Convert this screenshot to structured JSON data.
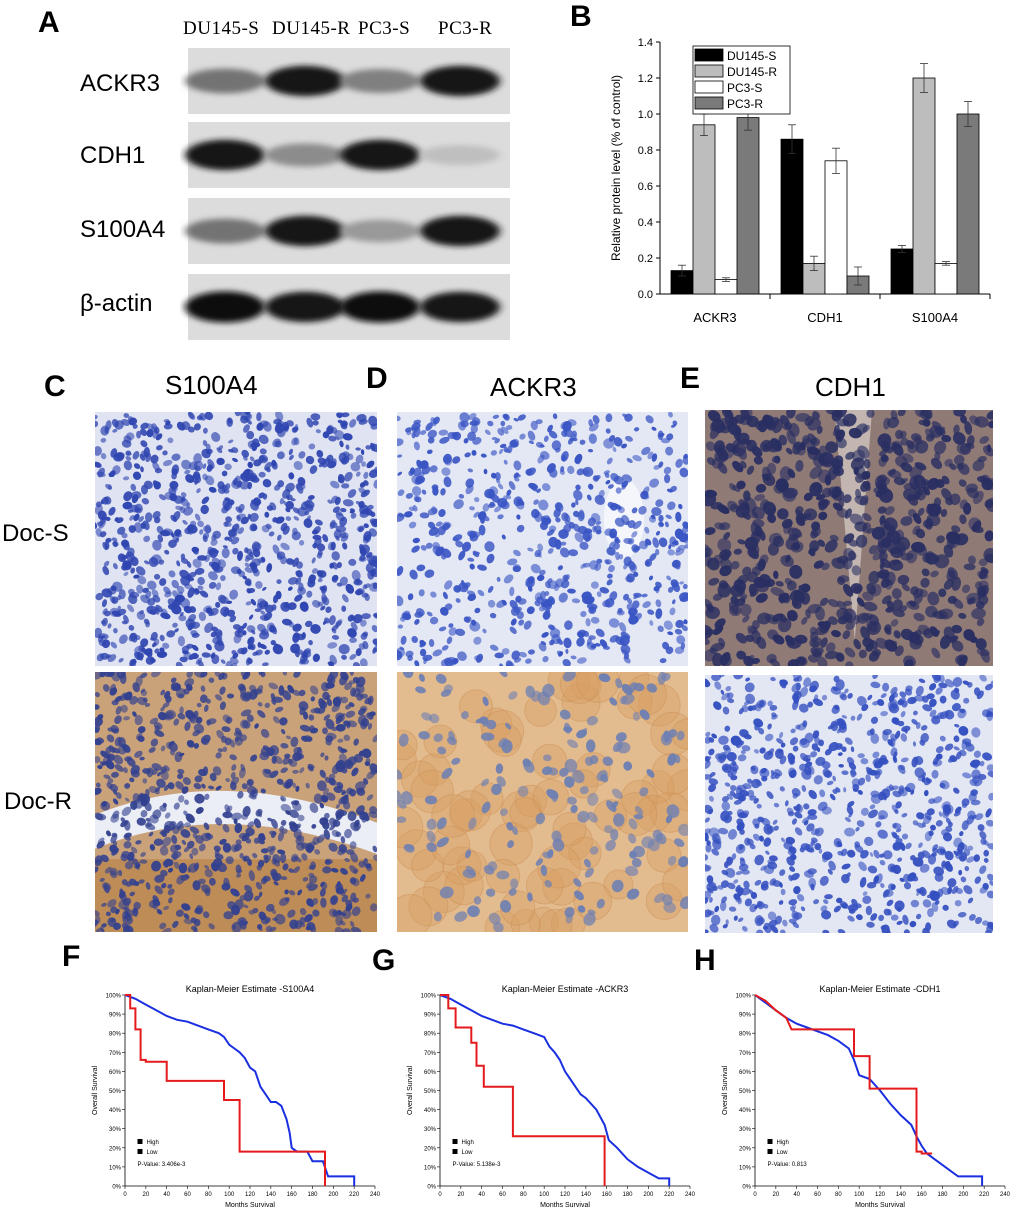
{
  "panels": {
    "A": "A",
    "B": "B",
    "C": "C",
    "D": "D",
    "E": "E",
    "F": "F",
    "G": "G",
    "H": "H"
  },
  "blot": {
    "lanes": [
      "DU145-S",
      "DU145-R",
      "PC3-S",
      "PC3-R"
    ],
    "rows": [
      {
        "label": "ACKR3",
        "intensity": [
          0.55,
          0.9,
          0.5,
          0.9
        ]
      },
      {
        "label": "CDH1",
        "intensity": [
          0.9,
          0.45,
          0.9,
          0.25
        ]
      },
      {
        "label": "S100A4",
        "intensity": [
          0.55,
          0.9,
          0.4,
          0.9
        ]
      },
      {
        "label": "β-actin",
        "intensity": [
          0.95,
          0.9,
          0.95,
          0.9
        ]
      }
    ]
  },
  "chart_data": [
    {
      "type": "bar",
      "ylabel": "Relative protein level (% of control)",
      "categories": [
        "ACKR3",
        "CDH1",
        "S100A4"
      ],
      "ylim": [
        0,
        1.4
      ],
      "yticks": [
        "0.0",
        "0.2",
        "0.4",
        "0.6",
        "0.8",
        "1.0",
        "1.2",
        "1.4"
      ],
      "legend_position": "top-left",
      "series": [
        {
          "name": "DU145-S",
          "color": "#000000",
          "values": [
            0.13,
            0.86,
            0.25
          ],
          "errors": [
            0.03,
            0.08,
            0.02
          ]
        },
        {
          "name": "DU145-R",
          "color": "#bdbdbd",
          "values": [
            0.94,
            0.17,
            1.2
          ],
          "errors": [
            0.06,
            0.04,
            0.08
          ]
        },
        {
          "name": "PC3-S",
          "color": "#ffffff",
          "values": [
            0.08,
            0.74,
            0.17
          ],
          "errors": [
            0.01,
            0.07,
            0.01
          ]
        },
        {
          "name": "PC3-R",
          "color": "#7a7a7a",
          "values": [
            0.98,
            0.1,
            1.0
          ],
          "errors": [
            0.07,
            0.05,
            0.07
          ]
        }
      ]
    },
    {
      "type": "line",
      "title": "Kaplan-Meier Estimate -S100A4",
      "xlabel": "Months Survival",
      "ylabel": "Overall Survival",
      "xlim": [
        0,
        240
      ],
      "ylim": [
        0,
        100
      ],
      "legend": [
        "High",
        "Low"
      ],
      "pvalue": "P-Value: 3.406e-3",
      "series": [
        {
          "name": "High",
          "color": "#e41a1c",
          "points": [
            [
              0,
              100
            ],
            [
              5,
              100
            ],
            [
              5,
              93
            ],
            [
              10,
              93
            ],
            [
              10,
              82
            ],
            [
              15,
              82
            ],
            [
              15,
              66
            ],
            [
              20,
              66
            ],
            [
              20,
              65
            ],
            [
              40,
              65
            ],
            [
              40,
              55
            ],
            [
              95,
              55
            ],
            [
              95,
              45
            ],
            [
              110,
              45
            ],
            [
              110,
              18
            ],
            [
              192,
              18
            ],
            [
              192,
              0
            ]
          ]
        },
        {
          "name": "Low",
          "color": "#1a2fe0",
          "points": [
            [
              0,
              100
            ],
            [
              10,
              98
            ],
            [
              20,
              95
            ],
            [
              30,
              92
            ],
            [
              40,
              89
            ],
            [
              50,
              87
            ],
            [
              60,
              86
            ],
            [
              70,
              84
            ],
            [
              80,
              82
            ],
            [
              90,
              80
            ],
            [
              95,
              78
            ],
            [
              100,
              74
            ],
            [
              105,
              72
            ],
            [
              110,
              70
            ],
            [
              115,
              67
            ],
            [
              120,
              62
            ],
            [
              125,
              60
            ],
            [
              130,
              52
            ],
            [
              135,
              48
            ],
            [
              140,
              44
            ],
            [
              145,
              44
            ],
            [
              150,
              42
            ],
            [
              155,
              35
            ],
            [
              158,
              28
            ],
            [
              160,
              20
            ],
            [
              165,
              18
            ],
            [
              175,
              18
            ],
            [
              180,
              13
            ],
            [
              190,
              13
            ],
            [
              195,
              5
            ],
            [
              220,
              5
            ],
            [
              220,
              0
            ]
          ]
        }
      ],
      "xticks": [
        0,
        20,
        40,
        60,
        80,
        100,
        120,
        140,
        160,
        180,
        200,
        220,
        240
      ],
      "yticks": [
        0,
        10,
        20,
        30,
        40,
        50,
        60,
        70,
        80,
        90,
        100
      ]
    },
    {
      "type": "line",
      "title": "Kaplan-Meier Estimate -ACKR3",
      "xlabel": "Months Survival",
      "ylabel": "Overall Survival",
      "xlim": [
        0,
        240
      ],
      "ylim": [
        0,
        100
      ],
      "legend": [
        "High",
        "Low"
      ],
      "pvalue": "P-Value: 5.138e-3",
      "series": [
        {
          "name": "High",
          "color": "#e41a1c",
          "points": [
            [
              0,
              100
            ],
            [
              8,
              100
            ],
            [
              8,
              93
            ],
            [
              15,
              93
            ],
            [
              15,
              83
            ],
            [
              30,
              83
            ],
            [
              30,
              75
            ],
            [
              35,
              75
            ],
            [
              35,
              63
            ],
            [
              42,
              63
            ],
            [
              42,
              52
            ],
            [
              70,
              52
            ],
            [
              70,
              26
            ],
            [
              158,
              26
            ],
            [
              158,
              0
            ]
          ]
        },
        {
          "name": "Low",
          "color": "#1a2fe0",
          "points": [
            [
              0,
              100
            ],
            [
              10,
              98
            ],
            [
              20,
              95
            ],
            [
              30,
              92
            ],
            [
              40,
              89
            ],
            [
              50,
              87
            ],
            [
              60,
              85
            ],
            [
              70,
              84
            ],
            [
              80,
              82
            ],
            [
              90,
              80
            ],
            [
              100,
              78
            ],
            [
              105,
              73
            ],
            [
              110,
              70
            ],
            [
              115,
              66
            ],
            [
              120,
              60
            ],
            [
              125,
              56
            ],
            [
              130,
              52
            ],
            [
              135,
              48
            ],
            [
              140,
              46
            ],
            [
              150,
              40
            ],
            [
              158,
              32
            ],
            [
              162,
              24
            ],
            [
              170,
              20
            ],
            [
              180,
              14
            ],
            [
              190,
              10
            ],
            [
              200,
              7
            ],
            [
              210,
              4
            ],
            [
              220,
              4
            ],
            [
              220,
              0
            ]
          ]
        }
      ],
      "xticks": [
        0,
        20,
        40,
        60,
        80,
        100,
        120,
        140,
        160,
        180,
        200,
        220,
        240
      ],
      "yticks": [
        0,
        10,
        20,
        30,
        40,
        50,
        60,
        70,
        80,
        90,
        100
      ]
    },
    {
      "type": "line",
      "title": "Kaplan-Meier Estimate -CDH1",
      "xlabel": "Months Survival",
      "ylabel": "Overall Survival",
      "xlim": [
        0,
        240
      ],
      "ylim": [
        0,
        100
      ],
      "legend": [
        "High",
        "Low"
      ],
      "pvalue": "P-Value: 0.813",
      "series": [
        {
          "name": "High",
          "color": "#e41a1c",
          "points": [
            [
              0,
              100
            ],
            [
              10,
              97
            ],
            [
              20,
              92
            ],
            [
              30,
              88
            ],
            [
              35,
              82
            ],
            [
              95,
              82
            ],
            [
              95,
              68
            ],
            [
              110,
              68
            ],
            [
              110,
              51
            ],
            [
              155,
              51
            ],
            [
              155,
              18
            ],
            [
              160,
              18
            ],
            [
              160,
              17
            ],
            [
              170,
              17
            ]
          ]
        },
        {
          "name": "Low",
          "color": "#1a2fe0",
          "points": [
            [
              0,
              100
            ],
            [
              10,
              96
            ],
            [
              20,
              92
            ],
            [
              30,
              88
            ],
            [
              40,
              85
            ],
            [
              50,
              83
            ],
            [
              60,
              81
            ],
            [
              70,
              79
            ],
            [
              80,
              76
            ],
            [
              90,
              72
            ],
            [
              95,
              66
            ],
            [
              100,
              58
            ],
            [
              110,
              56
            ],
            [
              120,
              50
            ],
            [
              130,
              43
            ],
            [
              140,
              37
            ],
            [
              150,
              32
            ],
            [
              155,
              26
            ],
            [
              160,
              21
            ],
            [
              165,
              17
            ],
            [
              175,
              13
            ],
            [
              185,
              9
            ],
            [
              195,
              5
            ],
            [
              218,
              5
            ],
            [
              218,
              0
            ]
          ]
        }
      ],
      "xticks": [
        0,
        20,
        40,
        60,
        80,
        100,
        120,
        140,
        160,
        180,
        200,
        220,
        240
      ],
      "yticks": [
        0,
        10,
        20,
        30,
        40,
        50,
        60,
        70,
        80,
        90,
        100
      ]
    }
  ],
  "ihc": {
    "titles": [
      "S100A4",
      "ACKR3",
      "CDH1"
    ],
    "rows": [
      "Doc-S",
      "Doc-R"
    ]
  },
  "colors": {
    "hematoxylin": "#2f45b0",
    "dab": "#b57a3a"
  }
}
